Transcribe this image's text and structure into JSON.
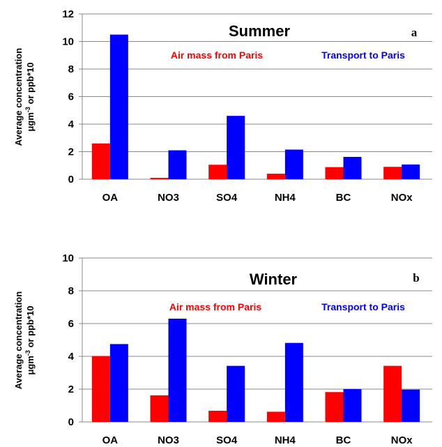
{
  "chart_data": [
    {
      "type": "bar",
      "title": "Summer",
      "panel_label": "a",
      "categories": [
        "OA",
        "NO3",
        "SO4",
        "NH4",
        "BC",
        "NOx"
      ],
      "series": [
        {
          "name": "Air mass from Paris",
          "color": "#ff0000",
          "values": [
            2.6,
            0.1,
            1.05,
            0.4,
            0.88,
            0.9
          ]
        },
        {
          "name": "Transport to Paris",
          "color": "#0000ff",
          "values": [
            10.5,
            2.1,
            4.6,
            2.15,
            1.62,
            1.07
          ]
        }
      ],
      "ylabel_line1": "Average concentration",
      "ylabel_line2_base": "μgm",
      "ylabel_line2_sup": "-3",
      "ylabel_line2_rest": " or ppb*10",
      "ylim": [
        0,
        12
      ],
      "yticks": [
        "0",
        "2",
        "4",
        "6",
        "8",
        "10",
        "12"
      ],
      "grid": true,
      "legend_placement": "top"
    },
    {
      "type": "bar",
      "title": "Winter",
      "panel_label": "b",
      "categories": [
        "OA",
        "NO3",
        "SO4",
        "NH4",
        "BC",
        "NOx"
      ],
      "series": [
        {
          "name": "Air mass from Paris",
          "color": "#ff0000",
          "values": [
            4.02,
            1.62,
            0.68,
            0.62,
            1.82,
            3.42
          ]
        },
        {
          "name": "Transport to Paris",
          "color": "#0000ff",
          "values": [
            4.75,
            6.3,
            3.42,
            4.82,
            2.0,
            1.97
          ]
        }
      ],
      "ylabel_line1": "Average concentration",
      "ylabel_line2_base": "μgm",
      "ylabel_line2_sup": "-3",
      "ylabel_line2_rest": " or ppb*10",
      "ylim": [
        0,
        10
      ],
      "yticks": [
        "0",
        "2",
        "4",
        "6",
        "8",
        "10"
      ],
      "grid": true,
      "legend_placement": "top"
    }
  ]
}
